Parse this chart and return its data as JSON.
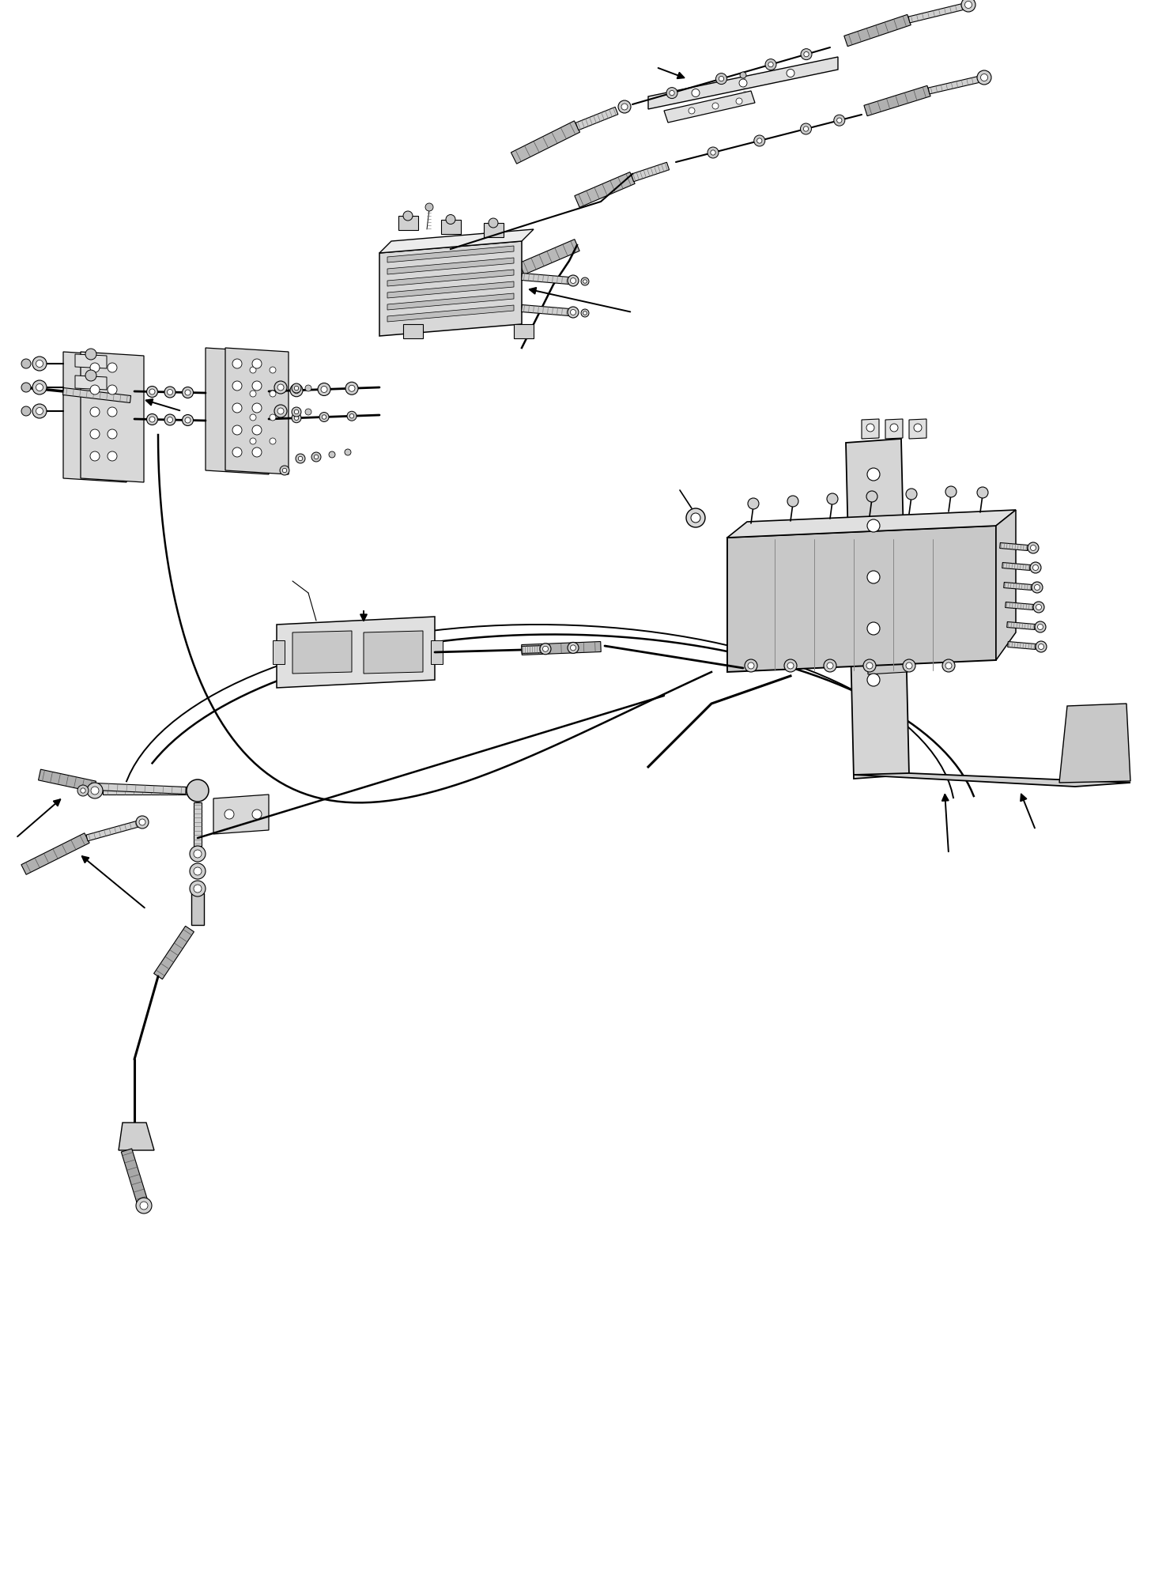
{
  "bg_color": "#ffffff",
  "lc": "#000000",
  "gray1": "#d8d8d8",
  "gray2": "#c8c8c8",
  "gray3": "#b0b0b0",
  "gray4": "#e8e8e8",
  "gray5": "#a0a0a0",
  "figure_width": 14.75,
  "figure_height": 19.91,
  "dpi": 100
}
